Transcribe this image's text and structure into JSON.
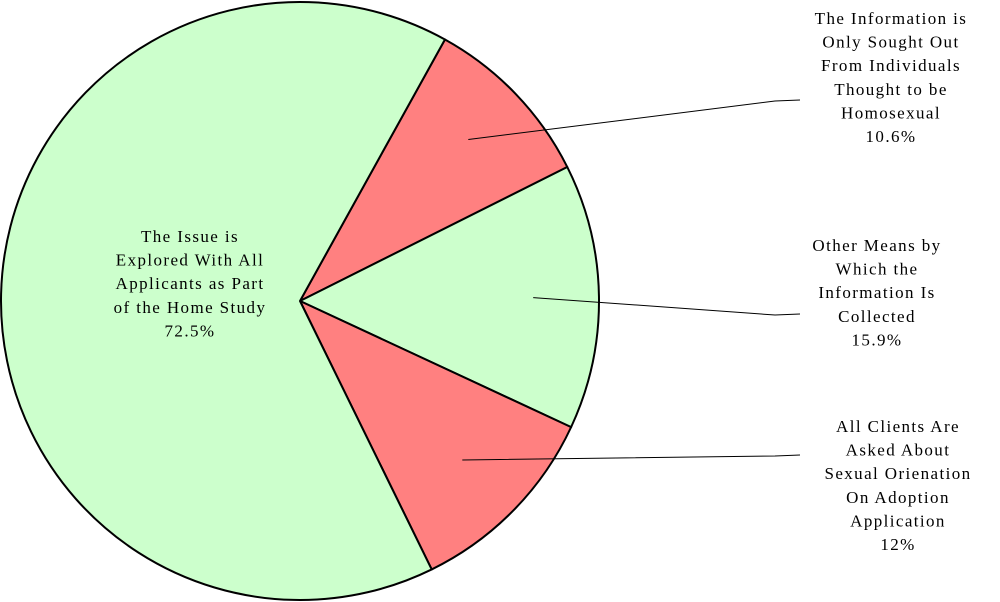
{
  "chart_data": {
    "type": "pie",
    "slices": [
      {
        "label_lines": [
          "The Information is",
          "Only Sought Out",
          "From Individuals",
          "Thought to be",
          "Homosexual"
        ],
        "value": 10.6,
        "value_label": "10.6%",
        "color": "#ff8080"
      },
      {
        "label_lines": [
          "Other Means by",
          "Which the",
          "Information Is",
          "Collected"
        ],
        "value": 15.9,
        "value_label": "15.9%",
        "color": "#ccffcc"
      },
      {
        "label_lines": [
          "All Clients Are",
          "Asked About",
          "Sexual Orienation",
          "On  Adoption",
          "Application"
        ],
        "value": 12,
        "value_label": "12%",
        "color": "#ff8080"
      },
      {
        "label_lines": [
          "The Issue is",
          "Explored With All",
          "Applicants as Part",
          "of the Home Study"
        ],
        "value": 72.5,
        "value_label": "72.5%",
        "color": "#ccffcc"
      }
    ],
    "start_angle_deg": 29,
    "direction": "clockwise",
    "border_color": "#000000"
  }
}
